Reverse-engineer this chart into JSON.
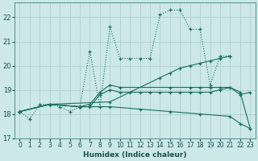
{
  "xlabel": "Humidex (Indice chaleur)",
  "bg_color": "#cce8e8",
  "grid_color": "#b0d0d0",
  "line_color": "#1a7060",
  "xlim": [
    -0.5,
    23.5
  ],
  "ylim": [
    17.0,
    22.6
  ],
  "yticks": [
    17,
    18,
    19,
    20,
    21,
    22
  ],
  "xticks": [
    0,
    1,
    2,
    3,
    4,
    5,
    6,
    7,
    8,
    9,
    10,
    11,
    12,
    13,
    14,
    15,
    16,
    17,
    18,
    19,
    20,
    21,
    22,
    23
  ],
  "lines": [
    {
      "x": [
        0,
        1,
        2,
        3,
        4,
        5,
        6,
        7,
        8,
        9,
        10,
        11,
        12,
        13,
        14,
        15,
        16,
        17,
        18,
        19,
        20,
        21
      ],
      "y": [
        18.1,
        17.8,
        18.4,
        18.4,
        18.3,
        18.1,
        18.3,
        20.6,
        18.3,
        21.6,
        20.3,
        20.3,
        20.3,
        20.3,
        22.1,
        22.3,
        22.3,
        21.5,
        21.5,
        19.2,
        20.4,
        20.4
      ],
      "style": "dotted"
    },
    {
      "x": [
        0,
        3,
        9,
        14,
        15,
        16,
        17,
        18,
        19,
        20,
        21
      ],
      "y": [
        18.1,
        18.4,
        18.5,
        19.5,
        19.7,
        19.9,
        20.0,
        20.1,
        20.2,
        20.3,
        20.4
      ],
      "style": "solid"
    },
    {
      "x": [
        0,
        3,
        6,
        7,
        8,
        9,
        10,
        11,
        12,
        13,
        14,
        15,
        16,
        17,
        18,
        19,
        20,
        21,
        22,
        23
      ],
      "y": [
        18.1,
        18.4,
        18.3,
        18.3,
        18.8,
        19.0,
        18.9,
        18.9,
        18.9,
        18.9,
        18.9,
        18.9,
        18.9,
        18.9,
        18.9,
        18.9,
        19.0,
        19.1,
        18.9,
        17.4
      ],
      "style": "solid"
    },
    {
      "x": [
        0,
        3,
        6,
        9,
        12,
        15,
        18,
        21,
        22,
        23
      ],
      "y": [
        18.1,
        18.4,
        18.3,
        18.3,
        18.2,
        18.1,
        18.0,
        17.9,
        17.6,
        17.4
      ],
      "style": "solid"
    },
    {
      "x": [
        0,
        3,
        6,
        7,
        8,
        9,
        10,
        15,
        17,
        18,
        19,
        20,
        21,
        22,
        23
      ],
      "y": [
        18.1,
        18.4,
        18.3,
        18.4,
        18.9,
        19.2,
        19.1,
        19.1,
        19.1,
        19.1,
        19.1,
        19.1,
        19.1,
        18.8,
        18.9
      ],
      "style": "solid"
    }
  ]
}
